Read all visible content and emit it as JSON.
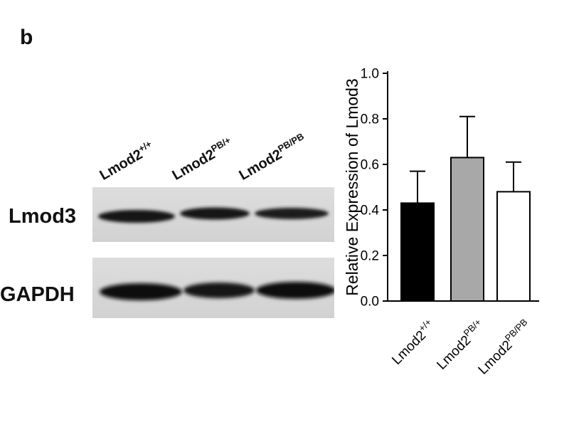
{
  "panel": {
    "label": "b"
  },
  "blot": {
    "lane_labels": [
      {
        "base": "Lmod2",
        "sup": "+/+"
      },
      {
        "base": "Lmod2",
        "sup": "PB/+"
      },
      {
        "base": "Lmod2",
        "sup": "PB/PB"
      }
    ],
    "rows": [
      {
        "label": "Lmod3"
      },
      {
        "label": "GAPDH"
      }
    ]
  },
  "chart_data": {
    "type": "bar",
    "title": "",
    "xlabel": "",
    "ylabel": "Relative Expression of Lmod3",
    "ylim": [
      0,
      1.0
    ],
    "yticks": [
      "0.0",
      "0.2",
      "0.4",
      "0.6",
      "0.8",
      "1.0"
    ],
    "categories": [
      {
        "base": "Lmod2",
        "sup": "+/+"
      },
      {
        "base": "Lmod2",
        "sup": "PB/+"
      },
      {
        "base": "Lmod2",
        "sup": "PB/PB"
      }
    ],
    "values": [
      0.43,
      0.63,
      0.48
    ],
    "errors": [
      0.14,
      0.18,
      0.13
    ],
    "bar_fills": [
      "#000000",
      "#a8a8a8",
      "#ffffff"
    ],
    "bar_stroke": "#000000",
    "grid": false,
    "legend": "none"
  }
}
